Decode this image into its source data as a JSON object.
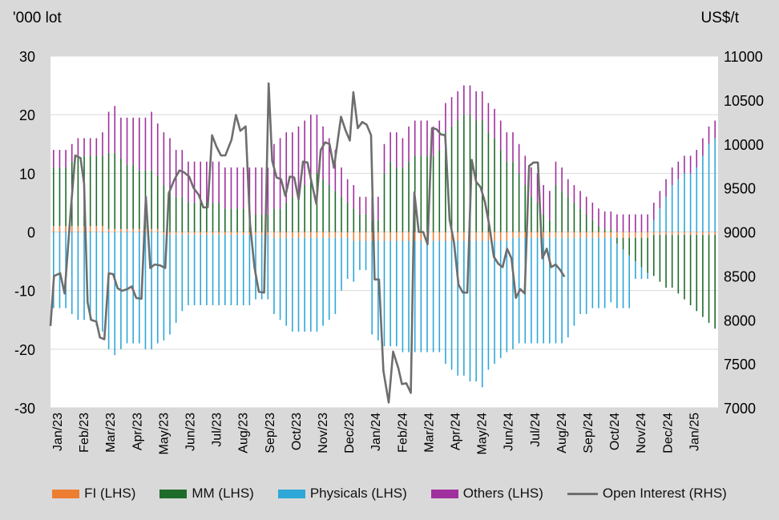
{
  "chart_data": {
    "type": "bar+line",
    "left_axis_label": "'000 lot",
    "right_axis_label": "US$/t",
    "ylim_left": [
      -30,
      30
    ],
    "yticks_left": [
      -30,
      -20,
      -10,
      0,
      10,
      20,
      30
    ],
    "ylim_right": [
      7000,
      11000
    ],
    "yticks_right": [
      7000,
      7500,
      8000,
      8500,
      9000,
      9500,
      10000,
      10500,
      11000
    ],
    "grid": "horizontal",
    "legend_position": "bottom",
    "x_start": "2023-01-06",
    "x_end": "2025-01-31",
    "month_labels": [
      "Jan/23",
      "Feb/23",
      "Mar/23",
      "Apr/23",
      "May/23",
      "Jun/23",
      "Jul/23",
      "Aug/23",
      "Sep/23",
      "Oct/23",
      "Nov/23",
      "Dec/23",
      "Jan/24",
      "Feb/24",
      "Mar/24",
      "Apr/24",
      "May/24",
      "Jun/24",
      "Jul/24",
      "Aug/24",
      "Sep/24",
      "Oct/24",
      "Nov/24",
      "Dec/24",
      "Jan/25"
    ],
    "colors": {
      "FI": "#ed7d31",
      "MM": "#1e6b2a",
      "Physicals": "#2ea8d8",
      "Others": "#a0309e",
      "OpenInterest": "#6e6e6e"
    },
    "series": [
      {
        "name": "FI (LHS)",
        "key": "FI",
        "axis": "left",
        "kind": "bar",
        "values": [
          1,
          1,
          1,
          1,
          1,
          1,
          1,
          1,
          1,
          0.5,
          0.5,
          0.5,
          0.5,
          0.5,
          0.5,
          0.5,
          0.5,
          0.5,
          -0.5,
          -0.5,
          -0.5,
          -0.5,
          -0.5,
          -0.5,
          -0.5,
          -0.5,
          -0.5,
          -0.5,
          -0.5,
          -0.5,
          -0.5,
          -0.5,
          -0.5,
          -0.5,
          -0.5,
          -0.5,
          -1,
          -1,
          -1,
          -1,
          -1,
          -1,
          -1,
          -1,
          -1,
          -1,
          -1,
          -1,
          -1,
          -1.5,
          -1.5,
          -1.5,
          -1.5,
          -1.5,
          -1.5,
          -1.5,
          -1.5,
          -1.5,
          -1.5,
          -1.5,
          -1.5,
          -1.5,
          -1.5,
          -1.5,
          -1.5,
          -1.5,
          -1.5,
          -1.5,
          -1.5,
          -1.5,
          -1.5,
          -1.5,
          -1.5,
          -1.5,
          -1.5,
          -1,
          -1,
          -1,
          -1,
          -1,
          -1,
          -1,
          -1,
          -1,
          -1,
          -1,
          -1,
          -1,
          -1,
          -1,
          -1,
          -1,
          -1,
          -1,
          -1,
          -1,
          -1,
          -1,
          -0.5,
          -0.5,
          -0.5,
          -0.5,
          -0.5,
          -0.5,
          -0.5,
          -0.5,
          -0.5,
          -0.5,
          -0.5
        ]
      },
      {
        "name": "MM (LHS)",
        "key": "MM",
        "axis": "left",
        "kind": "bar",
        "values": [
          10,
          10,
          10,
          11,
          12,
          12,
          12,
          12,
          12,
          13,
          13,
          12,
          11,
          11,
          10,
          10,
          10,
          9,
          8,
          7,
          6,
          6,
          5,
          5,
          5,
          5,
          5,
          5,
          4,
          4,
          4,
          4,
          4,
          3,
          3,
          3,
          4,
          4,
          5,
          6,
          7,
          8,
          9,
          10,
          9,
          8,
          7,
          6,
          5,
          4,
          3,
          3,
          2,
          2,
          10,
          12,
          11,
          11,
          12,
          13,
          13,
          13,
          13,
          14,
          17,
          18,
          19,
          20,
          20,
          19,
          19,
          17,
          16,
          14,
          12,
          12,
          10,
          8,
          6,
          5,
          3,
          2,
          8,
          7,
          6,
          5,
          4,
          3,
          2,
          1,
          0.5,
          0.5,
          -1,
          -2,
          -3,
          -4,
          -5,
          -6,
          -7,
          -8,
          -9,
          -9,
          -10,
          -11,
          -12,
          -13,
          -14,
          -15,
          -16,
          -17,
          -18
        ]
      },
      {
        "name": "Physicals (LHS)",
        "key": "Physicals",
        "axis": "left",
        "kind": "bar",
        "values": [
          -13,
          -13,
          -13,
          -14,
          -15,
          -15,
          -15,
          -16,
          -17,
          -20,
          -21,
          -20,
          -19,
          -19,
          -19,
          -20,
          -20,
          -19,
          -18,
          -17,
          -15,
          -13,
          -12,
          -12,
          -12,
          -12,
          -12,
          -12,
          -12,
          -12,
          -12,
          -12,
          -12,
          -11,
          -11,
          -11,
          -13,
          -14,
          -15,
          -16,
          -16,
          -16,
          -16,
          -16,
          -15,
          -14,
          -13,
          -9,
          -7,
          -7,
          -5,
          -5,
          -16,
          -17,
          -18,
          -18,
          -18,
          -19,
          -19,
          -19,
          -19,
          -19,
          -19,
          -19,
          -21,
          -22,
          -23,
          -23,
          -24,
          -24,
          -25,
          -22,
          -21,
          -20,
          -19,
          -19,
          -18,
          -18,
          -18,
          -18,
          -18,
          -18,
          -18,
          -18,
          -17,
          -15,
          -13,
          -13,
          -12,
          -12,
          -12,
          -11,
          -11,
          -10,
          -9,
          -3,
          -2,
          -1,
          2,
          4,
          6,
          8,
          9,
          10,
          10,
          11,
          13,
          15,
          16,
          18,
          20
        ]
      },
      {
        "name": "Others (LHS)",
        "key": "Others",
        "axis": "left",
        "kind": "bar",
        "values": [
          3,
          3,
          3,
          3,
          3,
          3,
          3,
          3,
          4,
          7,
          8,
          7,
          8,
          8,
          9,
          9,
          10,
          9,
          9,
          9,
          8,
          8,
          7,
          7,
          7,
          7,
          7,
          7,
          7,
          7,
          7,
          7,
          7,
          8,
          8,
          8,
          11,
          12,
          12,
          11,
          11,
          11,
          11,
          10,
          9,
          8,
          7,
          5,
          4,
          4,
          3,
          3,
          4,
          4,
          5,
          5,
          6,
          5,
          6,
          6,
          6,
          6,
          5,
          5,
          5,
          5,
          5,
          5,
          5,
          5,
          5,
          5,
          5,
          5,
          5,
          5,
          5,
          5,
          5,
          5,
          5,
          5,
          4,
          4,
          3,
          3,
          3,
          3,
          3,
          3,
          3,
          3,
          3,
          3,
          3,
          3,
          3,
          3,
          3,
          3,
          3,
          3,
          3,
          3,
          3,
          3,
          3,
          3,
          3,
          3,
          3
        ]
      },
      {
        "name": "Open Interest (RHS)",
        "key": "OpenInterest",
        "axis": "right",
        "kind": "line",
        "points": [
          [
            "2023-01-06",
            7930
          ],
          [
            "2023-01-10",
            8500
          ],
          [
            "2023-01-17",
            8530
          ],
          [
            "2023-01-22",
            8300
          ],
          [
            "2023-01-29",
            9250
          ],
          [
            "2023-02-03",
            9870
          ],
          [
            "2023-02-09",
            9840
          ],
          [
            "2023-02-13",
            9550
          ],
          [
            "2023-02-17",
            8200
          ],
          [
            "2023-02-21",
            8000
          ],
          [
            "2023-02-27",
            7980
          ],
          [
            "2023-03-03",
            7800
          ],
          [
            "2023-03-08",
            7780
          ],
          [
            "2023-03-13",
            8530
          ],
          [
            "2023-03-18",
            8520
          ],
          [
            "2023-03-23",
            8360
          ],
          [
            "2023-03-28",
            8330
          ],
          [
            "2023-04-03",
            8350
          ],
          [
            "2023-04-08",
            8380
          ],
          [
            "2023-04-13",
            8250
          ],
          [
            "2023-04-19",
            8240
          ],
          [
            "2023-04-24",
            9400
          ],
          [
            "2023-04-29",
            8590
          ],
          [
            "2023-05-04",
            8630
          ],
          [
            "2023-05-10",
            8620
          ],
          [
            "2023-05-16",
            8590
          ],
          [
            "2023-05-20",
            9440
          ],
          [
            "2023-05-26",
            9590
          ],
          [
            "2023-06-01",
            9700
          ],
          [
            "2023-06-06",
            9680
          ],
          [
            "2023-06-12",
            9630
          ],
          [
            "2023-06-17",
            9500
          ],
          [
            "2023-06-23",
            9420
          ],
          [
            "2023-06-28",
            9280
          ],
          [
            "2023-07-03",
            9280
          ],
          [
            "2023-07-08",
            10100
          ],
          [
            "2023-07-13",
            9970
          ],
          [
            "2023-07-18",
            9870
          ],
          [
            "2023-07-23",
            9870
          ],
          [
            "2023-07-30",
            10050
          ],
          [
            "2023-08-04",
            10330
          ],
          [
            "2023-08-09",
            10150
          ],
          [
            "2023-08-15",
            10200
          ],
          [
            "2023-08-20",
            9090
          ],
          [
            "2023-08-25",
            8600
          ],
          [
            "2023-08-30",
            8320
          ],
          [
            "2023-09-05",
            8310
          ],
          [
            "2023-09-10",
            10690
          ],
          [
            "2023-09-14",
            9810
          ],
          [
            "2023-09-19",
            9620
          ],
          [
            "2023-09-24",
            9600
          ],
          [
            "2023-09-29",
            9410
          ],
          [
            "2023-10-04",
            9630
          ],
          [
            "2023-10-09",
            9620
          ],
          [
            "2023-10-14",
            9370
          ],
          [
            "2023-10-19",
            9800
          ],
          [
            "2023-10-24",
            9790
          ],
          [
            "2023-10-29",
            9550
          ],
          [
            "2023-11-03",
            9320
          ],
          [
            "2023-11-08",
            9930
          ],
          [
            "2023-11-13",
            10020
          ],
          [
            "2023-11-18",
            10000
          ],
          [
            "2023-11-23",
            9730
          ],
          [
            "2023-12-01",
            10310
          ],
          [
            "2023-12-06",
            10160
          ],
          [
            "2023-12-11",
            10040
          ],
          [
            "2023-12-15",
            10590
          ],
          [
            "2023-12-20",
            10180
          ],
          [
            "2023-12-25",
            10250
          ],
          [
            "2023-12-30",
            10220
          ],
          [
            "2024-01-04",
            10100
          ],
          [
            "2024-01-08",
            8460
          ],
          [
            "2024-01-13",
            8460
          ],
          [
            "2024-01-18",
            7420
          ],
          [
            "2024-01-24",
            7060
          ],
          [
            "2024-01-29",
            7640
          ],
          [
            "2024-02-04",
            7450
          ],
          [
            "2024-02-08",
            7270
          ],
          [
            "2024-02-13",
            7280
          ],
          [
            "2024-02-18",
            7170
          ],
          [
            "2024-02-22",
            9450
          ],
          [
            "2024-02-27",
            9000
          ],
          [
            "2024-03-03",
            9000
          ],
          [
            "2024-03-08",
            8860
          ],
          [
            "2024-03-13",
            10180
          ],
          [
            "2024-03-18",
            10170
          ],
          [
            "2024-03-23",
            10110
          ],
          [
            "2024-03-28",
            10100
          ],
          [
            "2024-04-02",
            9140
          ],
          [
            "2024-04-07",
            8880
          ],
          [
            "2024-04-12",
            8400
          ],
          [
            "2024-04-17",
            8310
          ],
          [
            "2024-04-22",
            8310
          ],
          [
            "2024-04-27",
            9820
          ],
          [
            "2024-05-02",
            9570
          ],
          [
            "2024-05-07",
            9510
          ],
          [
            "2024-05-12",
            9340
          ],
          [
            "2024-05-17",
            9070
          ],
          [
            "2024-05-22",
            8720
          ],
          [
            "2024-05-27",
            8640
          ],
          [
            "2024-06-01",
            8600
          ],
          [
            "2024-06-06",
            8810
          ],
          [
            "2024-06-11",
            8700
          ],
          [
            "2024-06-16",
            8250
          ],
          [
            "2024-06-21",
            8350
          ],
          [
            "2024-06-26",
            8300
          ],
          [
            "2024-07-01",
            9750
          ],
          [
            "2024-07-06",
            9790
          ],
          [
            "2024-07-11",
            9790
          ],
          [
            "2024-07-16",
            8700
          ],
          [
            "2024-07-21",
            8810
          ],
          [
            "2024-07-26",
            8600
          ],
          [
            "2024-07-31",
            8630
          ],
          [
            "2024-08-05",
            8570
          ],
          [
            "2024-08-10",
            8490
          ]
        ]
      }
    ]
  }
}
